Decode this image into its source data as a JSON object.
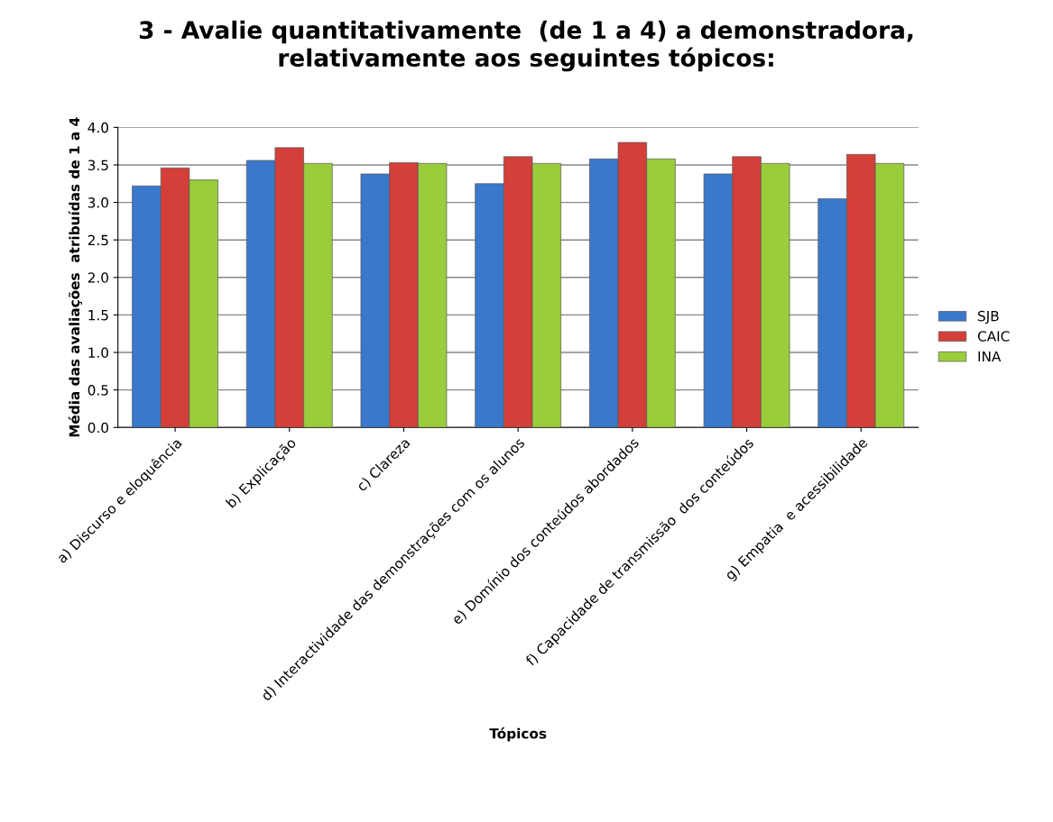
{
  "chart_data": {
    "type": "bar",
    "title": "3 - Avalie quantitativamente  (de 1 a 4) a demonstradora,\nrelativamente aos seguintes tópicos:",
    "xlabel": "Tópicos",
    "ylabel": "Média das avaliações  atribuídas de 1 a 4",
    "categories": [
      "a) Discurso e eloquência",
      "b) Explicação",
      "c) Clareza",
      "d) Interactividade das demonstrações com os alunos",
      "e) Domínio dos conteúdos abordados",
      "f) Capacidade de transmissão  dos conteúdos",
      "g) Empatia  e acessibilidade"
    ],
    "series": [
      {
        "name": "SJB",
        "color": "#3a78cc",
        "values": [
          3.22,
          3.56,
          3.38,
          3.25,
          3.58,
          3.38,
          3.05
        ]
      },
      {
        "name": "CAIC",
        "color": "#d43f3a",
        "values": [
          3.46,
          3.73,
          3.53,
          3.61,
          3.8,
          3.61,
          3.64
        ]
      },
      {
        "name": "INA",
        "color": "#9acd3c",
        "values": [
          3.3,
          3.52,
          3.52,
          3.52,
          3.58,
          3.52,
          3.52
        ]
      }
    ],
    "ylim": [
      0,
      4
    ],
    "yticks": [
      {
        "value": 0,
        "label": "0.0"
      },
      {
        "value": 0.5,
        "label": "0.5"
      },
      {
        "value": 1,
        "label": "1.0"
      },
      {
        "value": 1.5,
        "label": "1.5"
      },
      {
        "value": 2,
        "label": "2.0"
      },
      {
        "value": 2.5,
        "label": "2.5"
      },
      {
        "value": 3,
        "label": "3.0"
      },
      {
        "value": 3.5,
        "label": "3.5"
      },
      {
        "value": 4,
        "label": "4.0"
      }
    ],
    "grid": "y",
    "legend": "right"
  }
}
